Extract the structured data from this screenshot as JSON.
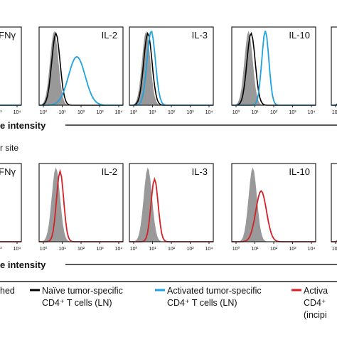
{
  "top_row": {
    "panels": [
      {
        "label": "FNγ"
      },
      {
        "label": "IL-2"
      },
      {
        "label": "IL-3"
      },
      {
        "label": "IL-10"
      },
      {
        "label": ""
      }
    ],
    "axis_label": "e intensity"
  },
  "x_ticks": [
    "10⁰",
    "10¹",
    "10²",
    "10³",
    "10⁴"
  ],
  "section_label": "r site",
  "bottom_row": {
    "panels": [
      {
        "label": "FNγ"
      },
      {
        "label": "IL-2"
      },
      {
        "label": "IL-3"
      },
      {
        "label": "IL-10"
      },
      {
        "label": ""
      }
    ],
    "axis_label": "e intensity"
  },
  "legend": [
    {
      "lines": [
        "hed"
      ]
    },
    {
      "lines": [
        "Naïve tumor-specific",
        "CD4⁺ T cells (LN)"
      ]
    },
    {
      "lines": [
        "Activated tumor-specific",
        "CD4⁺ T cells (LN)"
      ]
    },
    {
      "lines": [
        "Activa",
        "CD4⁺",
        "(incipi"
      ]
    }
  ]
}
